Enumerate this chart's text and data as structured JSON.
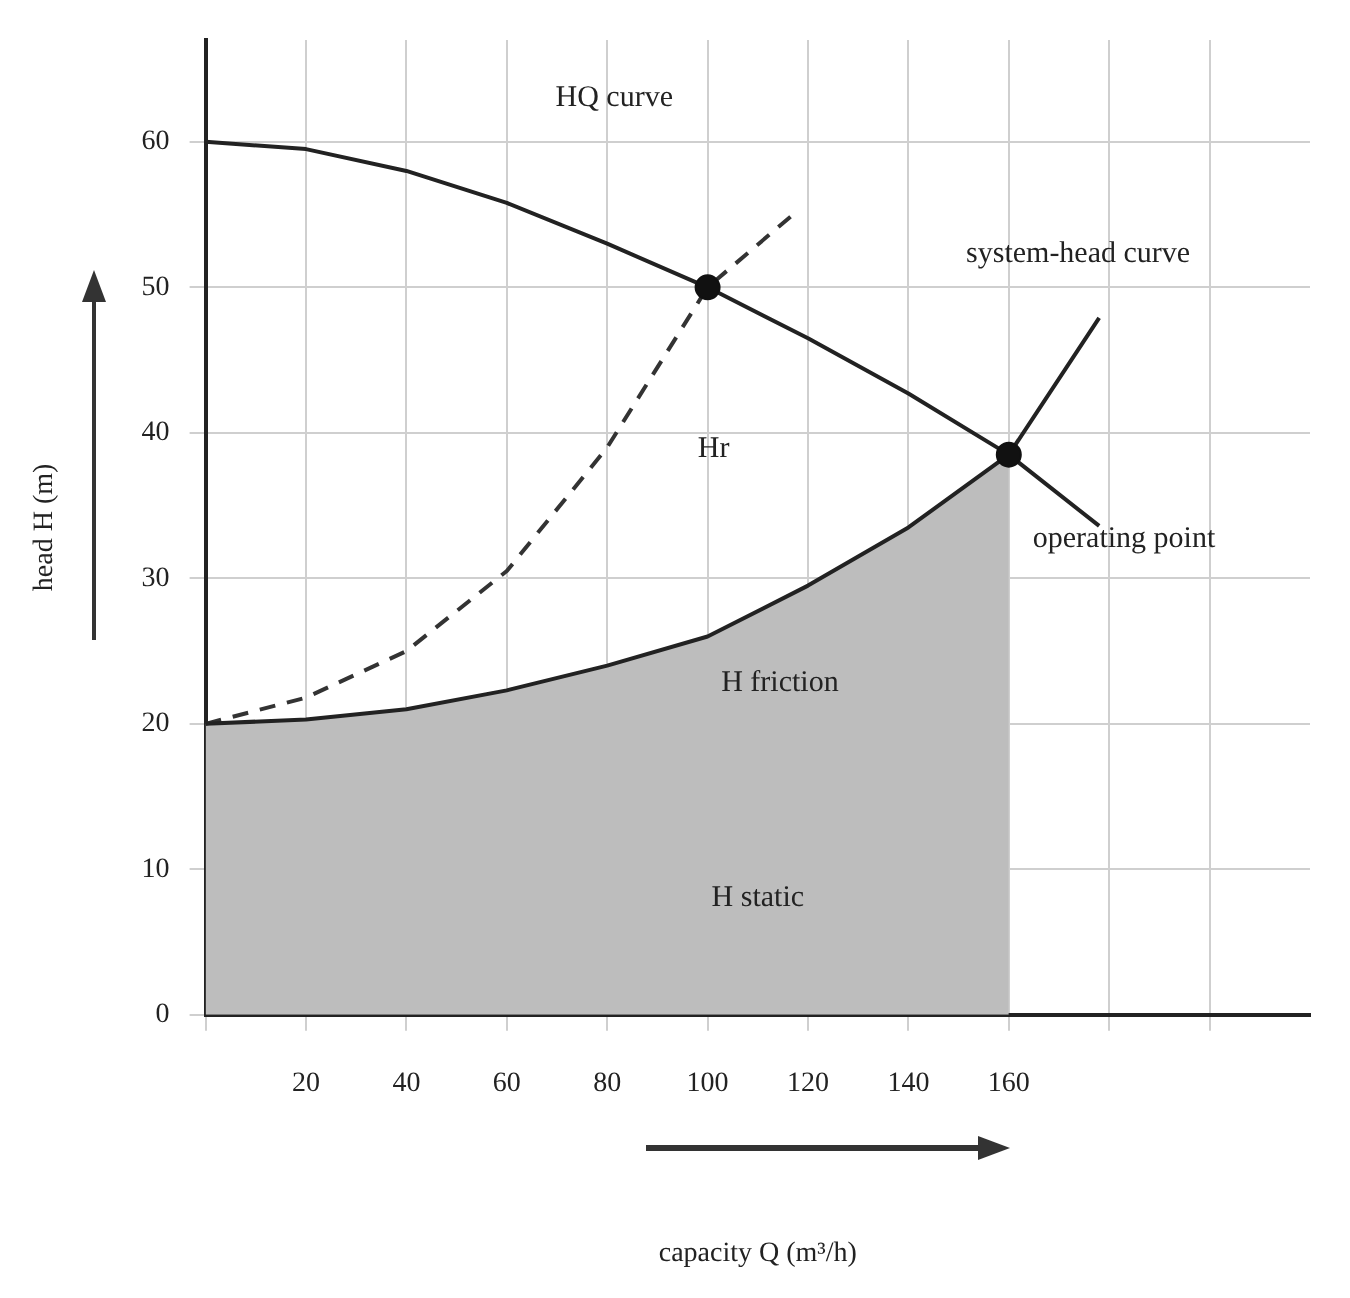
{
  "chart_data": {
    "type": "line",
    "xlabel": "capacity Q (m³/h)",
    "ylabel": "head H (m)",
    "xlim": [
      0,
      220
    ],
    "ylim": [
      0,
      67
    ],
    "xticks": [
      {
        "value": 0,
        "label": null
      },
      20,
      40,
      60,
      80,
      100,
      120,
      140,
      160,
      {
        "value": 180,
        "label": null
      },
      {
        "value": 200,
        "label": null
      }
    ],
    "yticks": [
      0,
      10,
      20,
      30,
      40,
      50,
      60
    ],
    "grid": true,
    "legend": false,
    "marker": "none",
    "series": [
      {
        "type": "area",
        "color": "#bdbdbd",
        "x": [
          0,
          20,
          40,
          60,
          80,
          100,
          120,
          140,
          160
        ],
        "values": [
          20,
          20.3,
          21,
          22.3,
          24,
          26,
          29.5,
          33.5,
          38.5
        ]
      },
      {
        "color": "#222222",
        "x": [
          0,
          20,
          40,
          60,
          80,
          100,
          120,
          140,
          160,
          178
        ],
        "values": [
          60,
          59.5,
          58,
          55.8,
          53,
          50,
          46.5,
          42.7,
          38.5,
          33.6
        ]
      },
      {
        "color": "#222222",
        "x": [
          0,
          20,
          40,
          60,
          80,
          100,
          120,
          140,
          160,
          178
        ],
        "values": [
          20,
          20.3,
          21,
          22.3,
          24,
          26,
          29.5,
          33.5,
          38.5,
          47.9
        ]
      },
      {
        "color": "#333333",
        "line_style": "dashed",
        "x": [
          0,
          20,
          40,
          60,
          80,
          100,
          117
        ],
        "values": [
          20,
          21.8,
          25,
          30.5,
          39,
          50,
          55
        ]
      },
      {
        "type": "scatter",
        "color": "#111111",
        "marker": "circle",
        "x": [
          100,
          160
        ],
        "values": [
          50,
          38.5
        ]
      }
    ],
    "annotations": [
      "HQ curve",
      "system-head curve",
      {
        "text": "operating point",
        "x": 160,
        "y": 38.5
      },
      "Hr",
      "H friction",
      "H static"
    ]
  }
}
